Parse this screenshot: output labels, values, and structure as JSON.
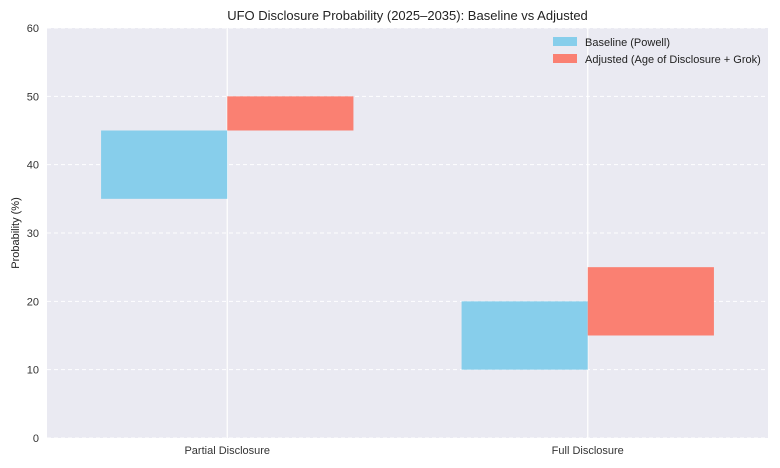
{
  "chart_data": {
    "type": "bar",
    "subtype": "floating-range",
    "title": "UFO Disclosure Probability (2025–2035): Baseline vs Adjusted",
    "xlabel": "",
    "ylabel": "Probability (%)",
    "ylim": [
      0,
      60
    ],
    "yticks": [
      0,
      10,
      20,
      30,
      40,
      50,
      60
    ],
    "grid": true,
    "legend_position": "top-right",
    "categories": [
      "Partial Disclosure",
      "Full Disclosure"
    ],
    "series": [
      {
        "name": "Baseline (Powell)",
        "color": "#87CEEB",
        "ranges": [
          [
            35,
            45
          ],
          [
            10,
            20
          ]
        ]
      },
      {
        "name": "Adjusted (Age of Disclosure + Grok)",
        "color": "#FA8072",
        "ranges": [
          [
            45,
            50
          ],
          [
            15,
            25
          ]
        ]
      }
    ]
  }
}
